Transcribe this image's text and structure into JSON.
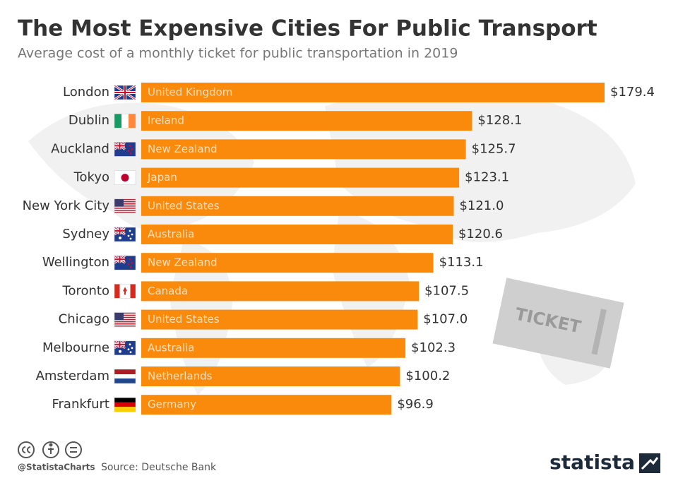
{
  "chart_data": {
    "type": "bar",
    "orientation": "horizontal",
    "title": "The Most Expensive Cities For Public Transport",
    "subtitle": "Average cost of a monthly ticket for public transportation in 2019",
    "categories": [
      "London",
      "Dublin",
      "Auckland",
      "Tokyo",
      "New York City",
      "Sydney",
      "Wellington",
      "Toronto",
      "Chicago",
      "Melbourne",
      "Amsterdam",
      "Frankfurt"
    ],
    "countries": [
      "United Kingdom",
      "Ireland",
      "New Zealand",
      "Japan",
      "United States",
      "Australia",
      "New Zealand",
      "Canada",
      "United States",
      "Australia",
      "Netherlands",
      "Germany"
    ],
    "values": [
      179.4,
      128.1,
      125.7,
      123.1,
      121.0,
      120.6,
      113.1,
      107.5,
      107.0,
      102.3,
      100.2,
      96.9
    ],
    "value_labels": [
      "$179.4",
      "$128.1",
      "$125.7",
      "$123.1",
      "$121.0",
      "$120.6",
      "$113.1",
      "$107.5",
      "$107.0",
      "$102.3",
      "$100.2",
      "$96.9"
    ],
    "color": "#f98a0c"
  },
  "illustration": {
    "label": "TICKET"
  },
  "footer": {
    "handle": "@StatistaCharts",
    "source": "Source: Deutsche Bank",
    "logo": "statista"
  }
}
